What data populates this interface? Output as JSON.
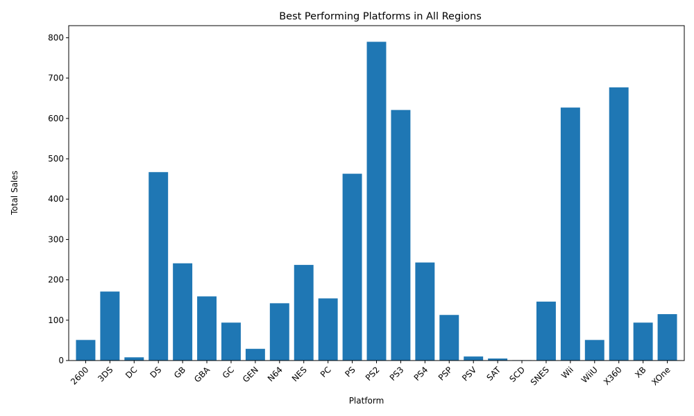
{
  "chart_data": {
    "type": "bar",
    "title": "Best Performing Platforms in All Regions",
    "xlabel": "Platform",
    "ylabel": "Total Sales",
    "categories": [
      "2600",
      "3DS",
      "DC",
      "DS",
      "GB",
      "GBA",
      "GC",
      "GEN",
      "N64",
      "NES",
      "PC",
      "PS",
      "PS2",
      "PS3",
      "PS4",
      "PSP",
      "PSV",
      "SAT",
      "SCD",
      "SNES",
      "Wii",
      "WiiU",
      "X360",
      "XB",
      "XOne"
    ],
    "values": [
      51,
      171,
      8,
      467,
      241,
      159,
      94,
      29,
      142,
      237,
      154,
      463,
      790,
      621,
      243,
      113,
      10,
      5,
      1,
      146,
      627,
      51,
      677,
      94,
      115
    ],
    "ylim": [
      0,
      830
    ],
    "yticks": [
      0,
      100,
      200,
      300,
      400,
      500,
      600,
      700,
      800
    ],
    "grid": false,
    "bar_color": "#1f77b4"
  }
}
